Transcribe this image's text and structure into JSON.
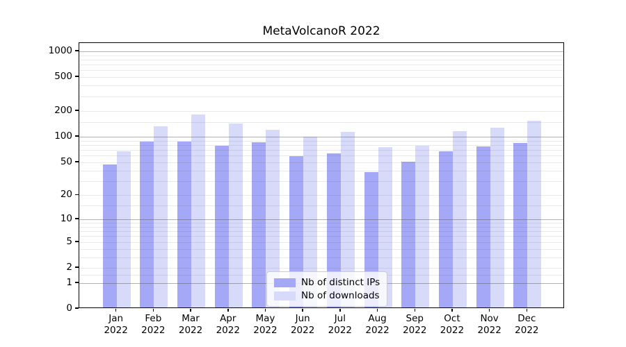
{
  "chart_data": {
    "type": "bar",
    "title": "MetaVolcanoR 2022",
    "categories": [
      {
        "month": "Jan",
        "year": "2022"
      },
      {
        "month": "Feb",
        "year": "2022"
      },
      {
        "month": "Mar",
        "year": "2022"
      },
      {
        "month": "Apr",
        "year": "2022"
      },
      {
        "month": "May",
        "year": "2022"
      },
      {
        "month": "Jun",
        "year": "2022"
      },
      {
        "month": "Jul",
        "year": "2022"
      },
      {
        "month": "Aug",
        "year": "2022"
      },
      {
        "month": "Sep",
        "year": "2022"
      },
      {
        "month": "Oct",
        "year": "2022"
      },
      {
        "month": "Nov",
        "year": "2022"
      },
      {
        "month": "Dec",
        "year": "2022"
      }
    ],
    "series": [
      {
        "name": "Nb of distinct IPs",
        "color": "#a5a7f7",
        "values": [
          45,
          84,
          84,
          75,
          83,
          57,
          61,
          37,
          49,
          65,
          74,
          81
        ]
      },
      {
        "name": "Nb of downloads",
        "color": "#d8dafa",
        "values": [
          65,
          129,
          176,
          137,
          116,
          96,
          110,
          73,
          75,
          113,
          124,
          150
        ]
      }
    ],
    "y_scale": "log10(value+1)",
    "ylim": [
      0,
      1250
    ],
    "y_tick_labels": [
      "1000",
      "500",
      "200",
      "100",
      "50",
      "20",
      "10",
      "5",
      "2",
      "1",
      "0"
    ],
    "y_tick_values": [
      1000,
      500,
      200,
      100,
      50,
      20,
      10,
      5,
      2,
      1,
      0
    ],
    "y_major_gridlines": [
      1,
      10,
      100,
      1000
    ],
    "y_minor_gridlines": [
      1.5,
      2,
      3,
      4,
      5,
      6,
      7,
      8,
      9,
      15,
      20,
      30,
      40,
      50,
      60,
      70,
      80,
      90,
      150,
      200,
      300,
      400,
      500,
      600,
      700,
      800,
      900
    ],
    "grid": "both",
    "legend_position": "lower center",
    "xlabel": "",
    "ylabel": ""
  },
  "colors": {
    "ips_bar": "#a5a7f7",
    "downloads_bar": "#d8dafa",
    "axis": "#000000"
  }
}
